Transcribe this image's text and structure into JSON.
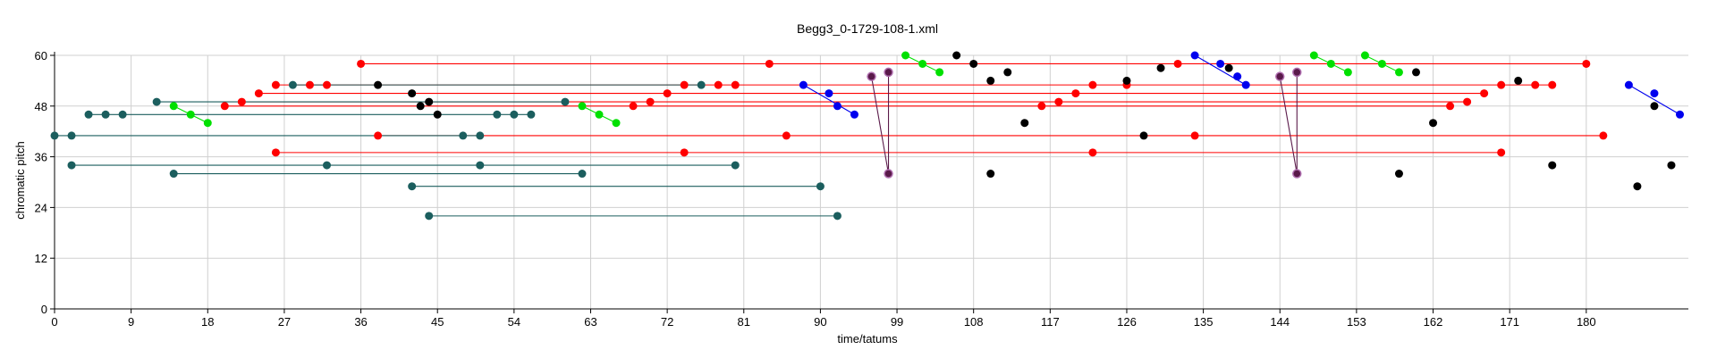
{
  "chart_data": {
    "type": "scatter",
    "title": "Begg3_0-1729-108-1.xml",
    "xlabel": "time/tatums",
    "ylabel": "chromatic pitch",
    "xlim": [
      0,
      192
    ],
    "ylim": [
      0,
      60
    ],
    "x_ticks": [
      0,
      9,
      18,
      27,
      36,
      45,
      54,
      63,
      72,
      81,
      90,
      99,
      108,
      117,
      126,
      135,
      144,
      153,
      162,
      171,
      180
    ],
    "y_ticks": [
      0,
      12,
      24,
      36,
      48,
      60
    ],
    "grid": true,
    "legend": "none",
    "colors": {
      "teal": "#1b5e5e",
      "red": "#ff0000",
      "green": "#00e000",
      "blue": "#0000ee",
      "purple": "#5a1a4a",
      "black": "#000000"
    },
    "series": [
      {
        "color_key": "red",
        "points": [
          [
            36,
            58
          ],
          [
            84,
            58
          ],
          [
            180,
            58
          ],
          [
            26,
            53
          ],
          [
            30,
            53
          ],
          [
            32,
            53
          ],
          [
            74,
            53
          ],
          [
            78,
            53
          ],
          [
            80,
            53
          ],
          [
            122,
            53
          ],
          [
            126,
            53
          ],
          [
            132,
            58
          ],
          [
            170,
            53
          ],
          [
            174,
            53
          ],
          [
            176,
            53
          ],
          [
            24,
            51
          ],
          [
            22,
            49
          ],
          [
            70,
            49
          ],
          [
            72,
            51
          ],
          [
            68,
            48
          ],
          [
            116,
            48
          ],
          [
            118,
            49
          ],
          [
            120,
            51
          ],
          [
            164,
            48
          ],
          [
            166,
            49
          ],
          [
            168,
            51
          ],
          [
            20,
            48
          ],
          [
            38,
            41
          ],
          [
            86,
            41
          ],
          [
            134,
            41
          ],
          [
            182,
            41
          ],
          [
            26,
            37
          ],
          [
            74,
            37
          ],
          [
            122,
            37
          ],
          [
            170,
            37
          ]
        ],
        "lines": [
          [
            36,
            58,
            180,
            58
          ],
          [
            26,
            53,
            176,
            53
          ],
          [
            24,
            51,
            168,
            51
          ],
          [
            22,
            49,
            166,
            49
          ],
          [
            20,
            48,
            164,
            48
          ],
          [
            38,
            41,
            182,
            41
          ],
          [
            26,
            37,
            170,
            37
          ]
        ]
      },
      {
        "color_key": "teal",
        "points": [
          [
            0,
            41
          ],
          [
            2,
            41
          ],
          [
            4,
            46
          ],
          [
            6,
            46
          ],
          [
            8,
            46
          ],
          [
            12,
            49
          ],
          [
            28,
            53
          ],
          [
            48,
            41
          ],
          [
            50,
            41
          ],
          [
            52,
            46
          ],
          [
            54,
            46
          ],
          [
            56,
            46
          ],
          [
            60,
            49
          ],
          [
            76,
            53
          ],
          [
            2,
            34
          ],
          [
            14,
            32
          ],
          [
            32,
            34
          ],
          [
            42,
            29
          ],
          [
            44,
            22
          ],
          [
            50,
            34
          ],
          [
            62,
            32
          ],
          [
            80,
            34
          ],
          [
            90,
            29
          ],
          [
            92,
            22
          ]
        ],
        "lines": [
          [
            0,
            41,
            50,
            41
          ],
          [
            4,
            46,
            56,
            46
          ],
          [
            12,
            49,
            60,
            49
          ],
          [
            28,
            53,
            76,
            53
          ],
          [
            2,
            34,
            80,
            34
          ],
          [
            14,
            32,
            62,
            32
          ],
          [
            42,
            29,
            90,
            29
          ],
          [
            44,
            22,
            92,
            22
          ]
        ]
      },
      {
        "color_key": "green",
        "points": [
          [
            14,
            48
          ],
          [
            16,
            46
          ],
          [
            18,
            44
          ],
          [
            62,
            48
          ],
          [
            64,
            46
          ],
          [
            66,
            44
          ],
          [
            100,
            60
          ],
          [
            102,
            58
          ],
          [
            104,
            56
          ],
          [
            148,
            60
          ],
          [
            150,
            58
          ],
          [
            152,
            56
          ],
          [
            154,
            60
          ],
          [
            156,
            58
          ],
          [
            158,
            56
          ]
        ],
        "lines": [
          [
            14,
            48,
            18,
            44
          ],
          [
            62,
            48,
            66,
            44
          ],
          [
            100,
            60,
            104,
            56
          ],
          [
            148,
            60,
            152,
            56
          ],
          [
            154,
            60,
            158,
            56
          ]
        ]
      },
      {
        "color_key": "blue",
        "points": [
          [
            88,
            53
          ],
          [
            91,
            51
          ],
          [
            92,
            48
          ],
          [
            94,
            46
          ],
          [
            134,
            60
          ],
          [
            137,
            58
          ],
          [
            139,
            55
          ],
          [
            140,
            53
          ],
          [
            185,
            53
          ],
          [
            188,
            51
          ],
          [
            191,
            46
          ]
        ],
        "lines": [
          [
            88,
            53,
            94,
            46
          ],
          [
            134,
            60,
            140,
            53
          ],
          [
            185,
            53,
            191,
            46
          ]
        ]
      },
      {
        "color_key": "purple",
        "points": [
          [
            96,
            55
          ],
          [
            98,
            56
          ],
          [
            98,
            32
          ],
          [
            144,
            55
          ],
          [
            146,
            56
          ],
          [
            146,
            32
          ]
        ],
        "lines": [
          [
            96,
            55,
            98,
            32
          ],
          [
            98,
            56,
            98,
            32
          ],
          [
            144,
            55,
            146,
            32
          ],
          [
            146,
            56,
            146,
            32
          ]
        ]
      },
      {
        "color_key": "black",
        "points": [
          [
            38,
            53
          ],
          [
            42,
            51
          ],
          [
            43,
            48
          ],
          [
            44,
            49
          ],
          [
            45,
            46
          ],
          [
            106,
            60
          ],
          [
            108,
            58
          ],
          [
            110,
            54
          ],
          [
            112,
            56
          ],
          [
            114,
            44
          ],
          [
            110,
            32
          ],
          [
            126,
            54
          ],
          [
            128,
            41
          ],
          [
            130,
            57
          ],
          [
            138,
            57
          ],
          [
            160,
            56
          ],
          [
            162,
            44
          ],
          [
            158,
            32
          ],
          [
            172,
            54
          ],
          [
            176,
            34
          ],
          [
            186,
            29
          ],
          [
            188,
            48
          ],
          [
            190,
            34
          ]
        ],
        "lines": []
      }
    ]
  }
}
